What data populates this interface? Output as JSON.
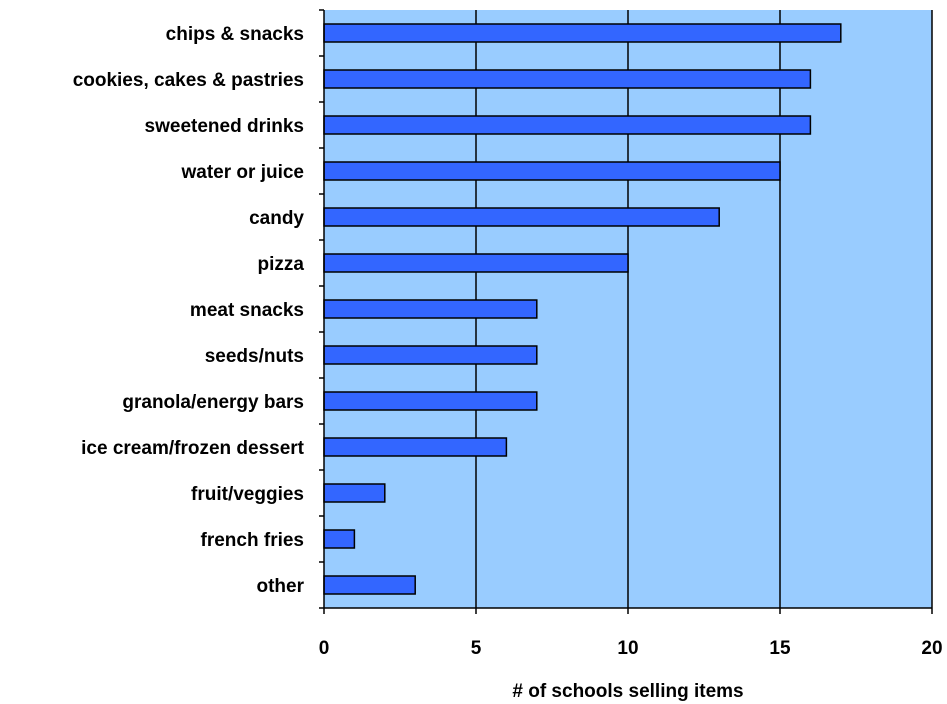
{
  "colors": {
    "plot_background": "#99ccff",
    "bar_fill": "#3366ff",
    "bar_stroke": "#000000",
    "grid": "#000000"
  },
  "chart_data": {
    "type": "bar",
    "orientation": "horizontal",
    "categories": [
      "chips & snacks",
      "cookies, cakes & pastries",
      "sweetened drinks",
      "water or juice",
      "candy",
      "pizza",
      "meat snacks",
      "seeds/nuts",
      "granola/energy bars",
      "ice cream/frozen dessert",
      "fruit/veggies",
      "french fries",
      "other"
    ],
    "values": [
      17,
      16,
      16,
      15,
      13,
      10,
      7,
      7,
      7,
      6,
      2,
      1,
      3
    ],
    "xlabel": "# of schools selling items",
    "ylabel": "",
    "xlim": [
      0,
      20
    ],
    "xticks": [
      0,
      5,
      10,
      15,
      20
    ],
    "grid": "vertical major gridlines",
    "legend": "none"
  }
}
